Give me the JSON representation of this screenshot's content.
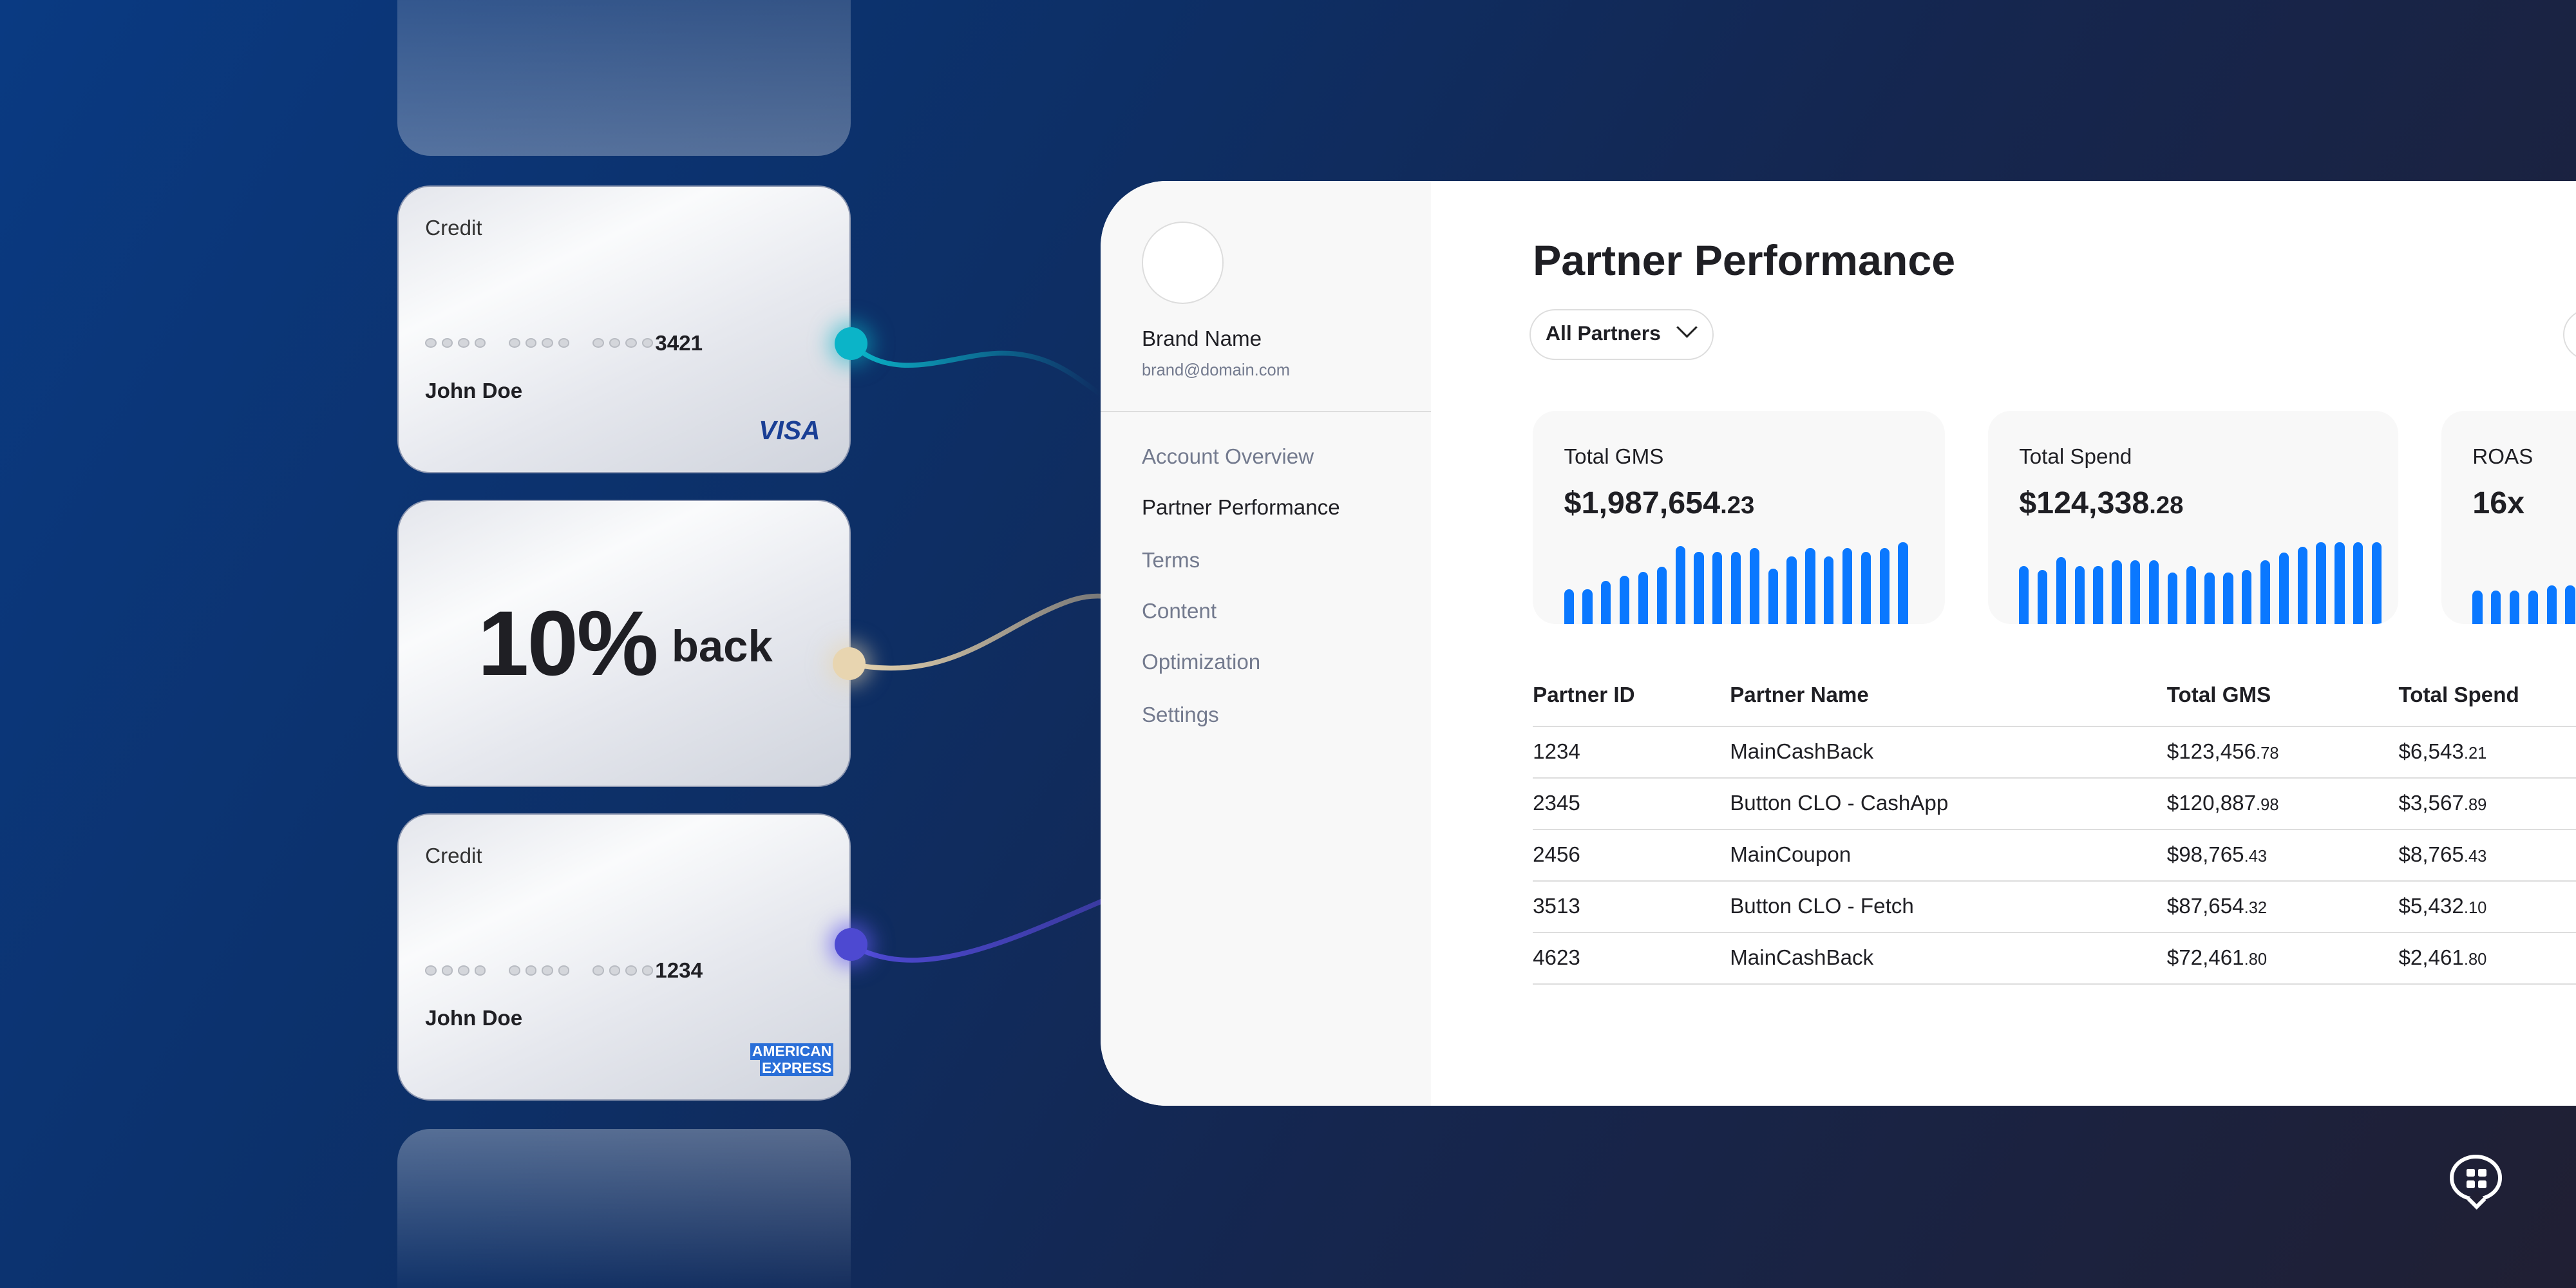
{
  "cards": [
    {
      "type": "Credit",
      "last4": "3421",
      "holder": "John Doe",
      "network": "VISA",
      "dot_color": "#0bb4c8"
    },
    {
      "offer_value": "10%",
      "offer_label": "back",
      "dot_color": "#e8d5b0"
    },
    {
      "type": "Credit",
      "last4": "1234",
      "holder": "John Doe",
      "network_line1": "AMERICAN",
      "network_line2": "EXPRESS",
      "dot_color": "#4d49d1"
    }
  ],
  "sidebar": {
    "brand_name": "Brand Name",
    "email": "brand@domain.com",
    "items": [
      {
        "label": "Account Overview"
      },
      {
        "label": "Partner Performance",
        "active": true
      },
      {
        "label": "Terms"
      },
      {
        "label": "Content"
      },
      {
        "label": "Optimization"
      },
      {
        "label": "Settings"
      }
    ]
  },
  "main": {
    "title": "Partner Performance",
    "filter": "All Partners",
    "kpis": [
      {
        "label": "Total GMS",
        "value": "$1,987,654",
        "cents": ".23",
        "trend": [
          43,
          43,
          53,
          59,
          64,
          70,
          95,
          88,
          88,
          88,
          93,
          68,
          83,
          93,
          83,
          93,
          88,
          93,
          100
        ]
      },
      {
        "label": "Total Spend",
        "value": "$124,338",
        "cents": ".28",
        "trend": [
          71,
          66,
          82,
          71,
          71,
          78,
          78,
          78,
          63,
          71,
          63,
          63,
          66,
          78,
          87,
          94,
          100,
          100,
          100,
          100
        ]
      },
      {
        "label": "ROAS",
        "value": "16x",
        "cents": "",
        "trend": [
          41,
          41,
          41,
          41,
          47,
          47
        ]
      }
    ],
    "accent": "#0a78ff",
    "table": {
      "headers": [
        "Partner ID",
        "Partner Name",
        "Total GMS",
        "Total Spend"
      ],
      "rows": [
        {
          "id": "1234",
          "name": "MainCashBack",
          "gms": "$123,456",
          "gms_c": ".78",
          "spend": "$6,543",
          "spend_c": ".21"
        },
        {
          "id": "2345",
          "name": "Button CLO - CashApp",
          "gms": "$120,887",
          "gms_c": ".98",
          "spend": "$3,567",
          "spend_c": ".89"
        },
        {
          "id": "2456",
          "name": "MainCoupon",
          "gms": "$98,765",
          "gms_c": ".43",
          "spend": "$8,765",
          "spend_c": ".43"
        },
        {
          "id": "3513",
          "name": "Button CLO - Fetch",
          "gms": "$87,654",
          "gms_c": ".32",
          "spend": "$5,432",
          "spend_c": ".10"
        },
        {
          "id": "4623",
          "name": "MainCashBack",
          "gms": "$72,461",
          "gms_c": ".80",
          "spend": "$2,461",
          "spend_c": ".80"
        }
      ]
    }
  },
  "chat_icon": "chat-grid-icon"
}
